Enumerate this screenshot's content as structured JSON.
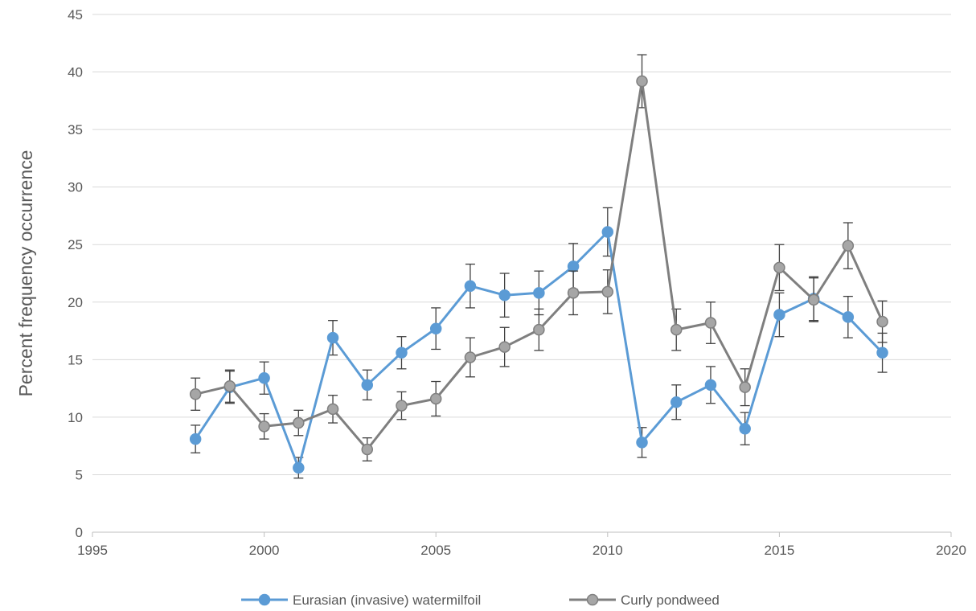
{
  "chart_data": {
    "type": "line",
    "title": "",
    "xlabel": "",
    "ylabel": "Percent frequency occurrence",
    "xlim": [
      1995,
      2020
    ],
    "ylim": [
      0,
      45
    ],
    "xticks": [
      1995,
      2000,
      2005,
      2010,
      2015,
      2020
    ],
    "yticks": [
      0,
      5,
      10,
      15,
      20,
      25,
      30,
      35,
      40,
      45
    ],
    "grid": "horizontal",
    "legend": "bottom-center",
    "error_bars": true,
    "series": [
      {
        "name": "Eurasian (invasive) watermilfoil",
        "color": "#5b9bd5",
        "marker_fill": "#5b9bd5",
        "x": [
          1998,
          1999,
          2000,
          2001,
          2002,
          2003,
          2004,
          2005,
          2006,
          2007,
          2008,
          2009,
          2010,
          2011,
          2012,
          2013,
          2014,
          2015,
          2016,
          2017,
          2018
        ],
        "y": [
          8.1,
          12.6,
          13.4,
          5.6,
          16.9,
          12.8,
          15.6,
          17.7,
          21.4,
          20.6,
          20.8,
          23.1,
          26.1,
          7.8,
          11.3,
          12.8,
          9.0,
          18.9,
          20.3,
          18.7,
          15.6
        ],
        "err": [
          1.2,
          1.4,
          1.4,
          0.9,
          1.5,
          1.3,
          1.4,
          1.8,
          1.9,
          1.9,
          1.9,
          2.0,
          2.1,
          1.3,
          1.5,
          1.6,
          1.4,
          1.9,
          1.9,
          1.8,
          1.7
        ]
      },
      {
        "name": "Curly pondweed",
        "color": "#7f7f7f",
        "marker_fill": "#a6a6a6",
        "x": [
          1998,
          1999,
          2000,
          2001,
          2002,
          2003,
          2004,
          2005,
          2006,
          2007,
          2008,
          2009,
          2010,
          2011,
          2012,
          2013,
          2014,
          2015,
          2016,
          2017,
          2018
        ],
        "y": [
          12.0,
          12.7,
          9.2,
          9.5,
          10.7,
          7.2,
          11.0,
          11.6,
          15.2,
          16.1,
          17.6,
          20.8,
          20.9,
          39.2,
          17.6,
          18.2,
          12.6,
          23.0,
          20.2,
          24.9,
          18.3
        ],
        "err": [
          1.4,
          1.4,
          1.1,
          1.1,
          1.2,
          1.0,
          1.2,
          1.5,
          1.7,
          1.7,
          1.8,
          1.9,
          1.9,
          2.3,
          1.8,
          1.8,
          1.6,
          2.0,
          1.9,
          2.0,
          1.8
        ]
      }
    ]
  }
}
